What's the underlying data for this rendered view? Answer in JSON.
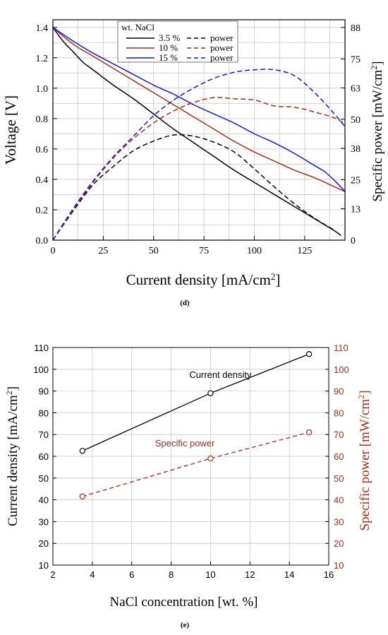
{
  "chart_data": [
    {
      "type": "line",
      "panel_label": "(d)",
      "xlabel": "Current density [mA/cm",
      "xlabel_sup": "2",
      "xlabel_end": "]",
      "ylabel": "Voltage [V]",
      "y2label": "Specific power [mW/cm",
      "y2label_sup": "2",
      "y2label_end": "]",
      "xlim": [
        0,
        145
      ],
      "ylim": [
        0,
        1.45
      ],
      "y2lim": [
        0,
        91.2
      ],
      "xticks": [
        0,
        25,
        50,
        75,
        100,
        125
      ],
      "xtick_labels": [
        "0",
        "25",
        "50",
        "75",
        "100",
        "125"
      ],
      "yticks": [
        0,
        0.2,
        0.4,
        0.6,
        0.8,
        1.0,
        1.2,
        1.4
      ],
      "ytick_labels": [
        "0.0",
        "0.2",
        "0.4",
        "0.6",
        "0.8",
        "1.0",
        "1.2",
        "1.4"
      ],
      "y2ticks": [
        0,
        13,
        25,
        38,
        50,
        63,
        75,
        88
      ],
      "y2tick_labels": [
        "0",
        "13",
        "25",
        "38",
        "50",
        "63",
        "75",
        "88"
      ],
      "grid": true,
      "legend": {
        "title": "wt. NaCl",
        "placement": "top-center",
        "entries": [
          {
            "label": "3.5 %",
            "power_label": "power",
            "color": "#000000"
          },
          {
            "label": "10 %",
            "power_label": "power",
            "color": "#a0301c"
          },
          {
            "label": "15 %",
            "power_label": "power",
            "color": "#1a1acc"
          }
        ]
      },
      "series": [
        {
          "name": "3.5 %",
          "axis": "left",
          "style": "solid",
          "color": "#000000",
          "x": [
            0,
            5,
            10,
            15,
            20,
            30,
            40,
            50,
            60,
            70,
            80,
            90,
            100,
            110,
            120,
            130,
            140,
            143
          ],
          "y": [
            1.4,
            1.31,
            1.24,
            1.17,
            1.12,
            1.02,
            0.93,
            0.83,
            0.73,
            0.64,
            0.55,
            0.46,
            0.38,
            0.3,
            0.22,
            0.14,
            0.06,
            0.03
          ]
        },
        {
          "name": "10 %",
          "axis": "left",
          "style": "solid",
          "color": "#a0301c",
          "x": [
            0,
            10,
            20,
            30,
            40,
            50,
            60,
            70,
            80,
            90,
            100,
            110,
            120,
            130,
            140,
            145
          ],
          "y": [
            1.4,
            1.29,
            1.21,
            1.13,
            1.05,
            0.97,
            0.89,
            0.81,
            0.73,
            0.65,
            0.58,
            0.52,
            0.46,
            0.41,
            0.35,
            0.32
          ]
        },
        {
          "name": "15 %",
          "axis": "left",
          "style": "solid",
          "color": "#1a1acc",
          "x": [
            0,
            10,
            20,
            30,
            40,
            50,
            60,
            70,
            80,
            90,
            100,
            110,
            120,
            130,
            135,
            140,
            145
          ],
          "y": [
            1.4,
            1.31,
            1.23,
            1.16,
            1.09,
            1.02,
            0.96,
            0.89,
            0.83,
            0.77,
            0.7,
            0.64,
            0.57,
            0.49,
            0.45,
            0.39,
            0.32
          ]
        },
        {
          "name": "power",
          "axis": "right",
          "style": "dashed",
          "color": "#000000",
          "x": [
            0,
            10,
            20,
            30,
            40,
            50,
            60,
            70,
            80,
            90,
            100,
            110,
            120,
            130,
            140
          ],
          "y": [
            0,
            12,
            23,
            30.5,
            37,
            41,
            43.5,
            43,
            40.5,
            36.5,
            29.5,
            22,
            15,
            9,
            4
          ]
        },
        {
          "name": "power",
          "axis": "right",
          "style": "dashed",
          "color": "#a0301c",
          "x": [
            0,
            10,
            20,
            30,
            40,
            50,
            60,
            70,
            80,
            90,
            100,
            110,
            120,
            130,
            140,
            145
          ],
          "y": [
            0,
            12.5,
            24,
            34,
            42,
            48.5,
            53.5,
            57,
            59,
            58.5,
            58,
            55.5,
            55,
            53,
            50.5,
            48
          ]
        },
        {
          "name": "power",
          "axis": "right",
          "style": "dashed",
          "color": "#1a1acc",
          "x": [
            0,
            10,
            20,
            30,
            40,
            50,
            60,
            70,
            80,
            90,
            100,
            110,
            120,
            130,
            140,
            145
          ],
          "y": [
            0,
            13,
            24.5,
            34.5,
            43,
            51.5,
            58,
            63,
            67,
            69.5,
            70.5,
            70.5,
            68,
            61,
            52,
            47
          ]
        }
      ]
    },
    {
      "type": "line",
      "panel_label": "(e)",
      "xlabel": "NaCl concentration [wt. %]",
      "ylabel": "Current density [mA/cm",
      "ylabel_sup": "2",
      "ylabel_end": "]",
      "y2label": "Specific power [mW/cm",
      "y2label_sup": "2",
      "y2label_end": "]",
      "xlim": [
        2,
        16
      ],
      "ylim": [
        10,
        110
      ],
      "y2lim": [
        10,
        110
      ],
      "xticks": [
        2,
        4,
        6,
        8,
        10,
        12,
        14,
        16
      ],
      "xtick_labels": [
        "2",
        "4",
        "6",
        "8",
        "10",
        "12",
        "14",
        "16"
      ],
      "yticks": [
        10,
        20,
        30,
        40,
        50,
        60,
        70,
        80,
        90,
        100,
        110
      ],
      "ytick_labels": [
        "10",
        "20",
        "30",
        "40",
        "50",
        "60",
        "70",
        "80",
        "90",
        "100",
        "110"
      ],
      "y2tick_labels": [
        "10",
        "20",
        "30",
        "40",
        "50",
        "60",
        "70",
        "80",
        "90",
        "100",
        "110"
      ],
      "grid": true,
      "annotations": [
        {
          "text": "Current density",
          "x": 10.5,
          "y": 96,
          "color": "#000000"
        },
        {
          "text": "Specific power",
          "x": 8.7,
          "y": 64.5,
          "color": "#a0301c"
        }
      ],
      "series": [
        {
          "name": "Current density",
          "axis": "left",
          "style": "solid",
          "color": "#000000",
          "x": [
            3.5,
            10,
            15
          ],
          "y": [
            62.5,
            89,
            107
          ]
        },
        {
          "name": "Specific power",
          "axis": "right",
          "style": "dashed",
          "color": "#a0301c",
          "x": [
            3.5,
            10,
            15
          ],
          "y": [
            41.5,
            59,
            71
          ]
        }
      ]
    }
  ]
}
